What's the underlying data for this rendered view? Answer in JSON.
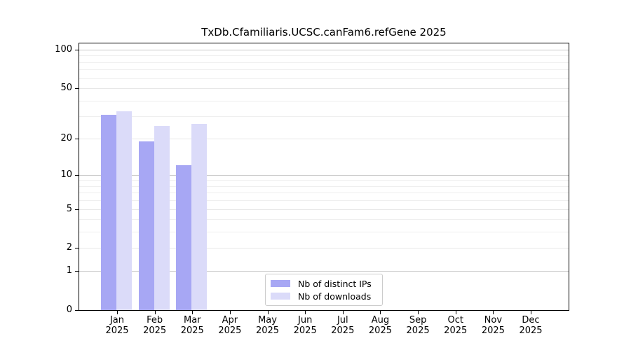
{
  "chart_data": {
    "type": "bar",
    "title": "TxDb.Cfamiliaris.UCSC.canFam6.refGene 2025",
    "categories": [
      "Jan",
      "Feb",
      "Mar",
      "Apr",
      "May",
      "Jun",
      "Jul",
      "Aug",
      "Sep",
      "Oct",
      "Nov",
      "Dec"
    ],
    "xlabel_line2": "2025",
    "series": [
      {
        "name": "Nb of distinct IPs",
        "color": "#a7a7f4",
        "values": [
          31,
          19,
          12,
          null,
          null,
          null,
          null,
          null,
          null,
          null,
          null,
          null
        ]
      },
      {
        "name": "Nb of downloads",
        "color": "#dbdbf9",
        "values": [
          33,
          25,
          26,
          null,
          null,
          null,
          null,
          null,
          null,
          null,
          null,
          null
        ]
      }
    ],
    "yscale": "log1p",
    "ylim": [
      0,
      112
    ],
    "yticks": [
      0,
      1,
      2,
      5,
      10,
      20,
      50,
      100
    ],
    "minor_gridlines": [
      3,
      4,
      6,
      7,
      8,
      9,
      30,
      40,
      60,
      70,
      80,
      90
    ],
    "grid": true,
    "legend_position": "lower center",
    "xlabel": "",
    "ylabel": ""
  }
}
